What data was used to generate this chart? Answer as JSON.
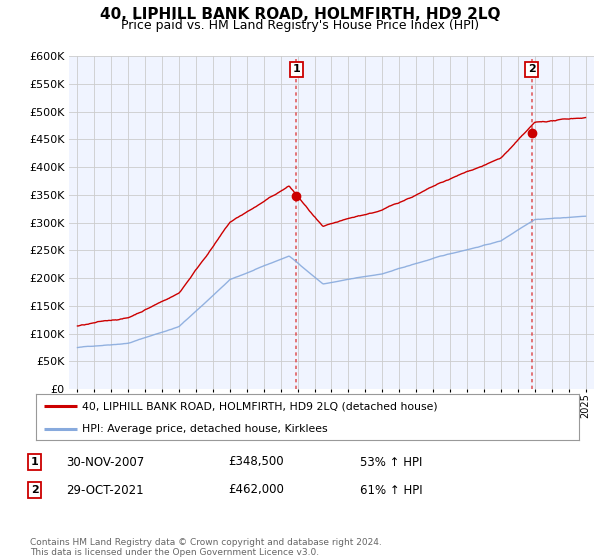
{
  "title": "40, LIPHILL BANK ROAD, HOLMFIRTH, HD9 2LQ",
  "subtitle": "Price paid vs. HM Land Registry's House Price Index (HPI)",
  "legend_line1": "40, LIPHILL BANK ROAD, HOLMFIRTH, HD9 2LQ (detached house)",
  "legend_line2": "HPI: Average price, detached house, Kirklees",
  "annotation1_date": "30-NOV-2007",
  "annotation1_price": "£348,500",
  "annotation1_hpi": "53% ↑ HPI",
  "annotation2_date": "29-OCT-2021",
  "annotation2_price": "£462,000",
  "annotation2_hpi": "61% ↑ HPI",
  "footer": "Contains HM Land Registry data © Crown copyright and database right 2024.\nThis data is licensed under the Open Government Licence v3.0.",
  "sale1_year": 2007.92,
  "sale1_price": 348500,
  "sale2_year": 2021.83,
  "sale2_price": 462000,
  "red_color": "#cc0000",
  "blue_color": "#88aadd",
  "dashed_color": "#dd4444",
  "ylim_min": 0,
  "ylim_max": 600000,
  "xlim_min": 1994.5,
  "xlim_max": 2025.5,
  "background_color": "#ffffff",
  "grid_color": "#cccccc",
  "title_fontsize": 11,
  "subtitle_fontsize": 9
}
